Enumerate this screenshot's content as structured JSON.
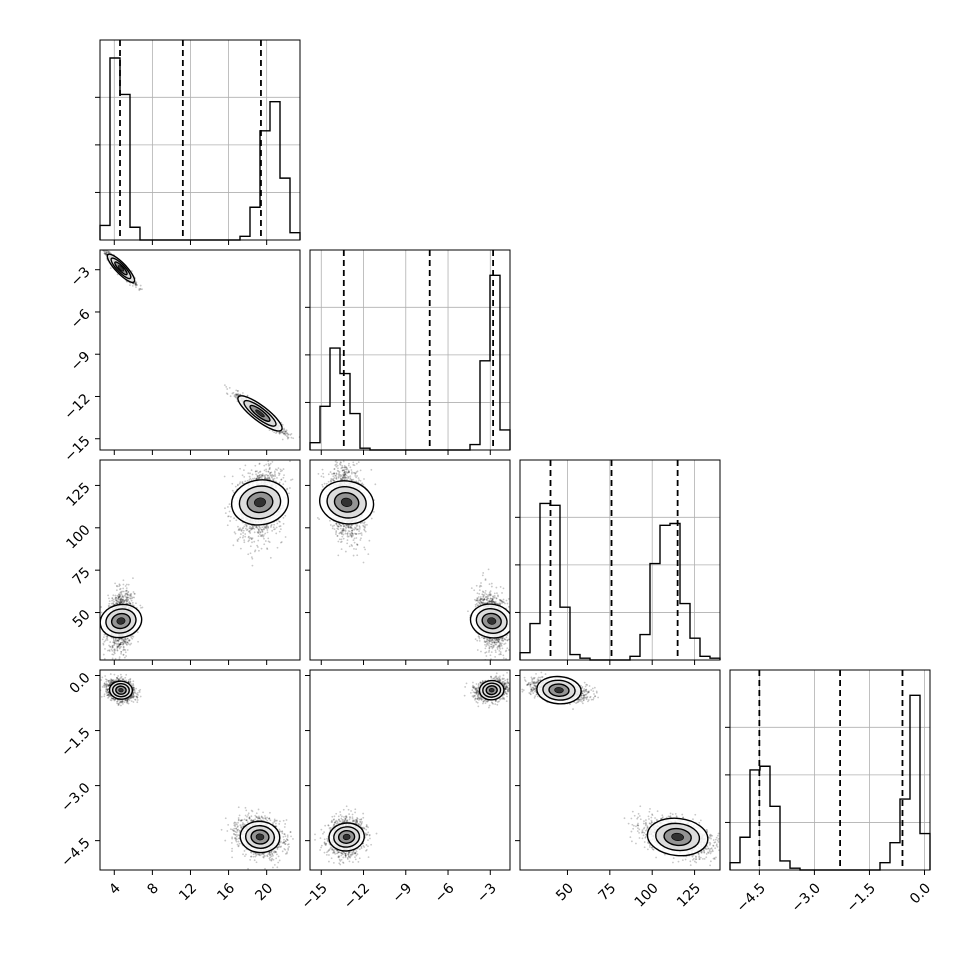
{
  "chart_data": {
    "type": "corner",
    "description_of_params": "4 parameters, no axis titles printed",
    "params": [
      {
        "range": [
          2.5,
          23.5
        ],
        "ticks": [
          4,
          8,
          12,
          16,
          20
        ],
        "tick_labels": [
          "4",
          "8",
          "12",
          "16",
          "20"
        ],
        "quantiles": [
          4.6,
          11.2,
          19.4
        ]
      },
      {
        "range": [
          -15.8,
          -1.6
        ],
        "ticks": [
          -15,
          -12,
          -9,
          -6,
          -3
        ],
        "tick_labels": [
          "−15",
          "−12",
          "−9",
          "−6",
          "−3"
        ],
        "quantiles": [
          -13.4,
          -7.3,
          -2.8
        ]
      },
      {
        "range": [
          22,
          140
        ],
        "ticks": [
          50,
          75,
          100,
          125
        ],
        "tick_labels": [
          "50",
          "75",
          "100",
          "125"
        ],
        "quantiles": [
          40,
          76,
          115
        ]
      },
      {
        "range": [
          -5.3,
          0.15
        ],
        "ticks": [
          -4.5,
          -3.0,
          -1.5,
          0.0
        ],
        "tick_labels": [
          "−4.5",
          "−3.0",
          "−1.5",
          "0.0"
        ],
        "quantiles": [
          -4.5,
          -2.3,
          -0.6
        ]
      }
    ],
    "histograms": [
      {
        "edges_start": 2.5,
        "bin_width": 1.05,
        "counts": [
          0.08,
          1.0,
          0.8,
          0.07,
          0,
          0,
          0,
          0,
          0,
          0,
          0,
          0,
          0,
          0,
          0.02,
          0.18,
          0.6,
          0.76,
          0.34,
          0.04
        ]
      },
      {
        "edges_start": -15.8,
        "bin_width": 0.71,
        "counts": [
          0.04,
          0.24,
          0.56,
          0.42,
          0.2,
          0.01,
          0,
          0,
          0,
          0,
          0,
          0,
          0,
          0,
          0,
          0,
          0.03,
          0.49,
          0.96,
          0.11
        ]
      },
      {
        "edges_start": 22,
        "bin_width": 5.9,
        "counts": [
          0.04,
          0.2,
          0.86,
          0.85,
          0.29,
          0.03,
          0.01,
          0,
          0,
          0,
          0,
          0.02,
          0.14,
          0.53,
          0.74,
          0.75,
          0.31,
          0.12,
          0.02,
          0.01
        ]
      },
      {
        "edges_start": -5.3,
        "bin_width": 0.2725,
        "counts": [
          0.04,
          0.18,
          0.55,
          0.57,
          0.35,
          0.05,
          0.01,
          0,
          0,
          0,
          0,
          0,
          0,
          0,
          0,
          0.04,
          0.15,
          0.39,
          0.96,
          0.2
        ]
      }
    ],
    "modes": [
      {
        "x": 4.7,
        "y": -2.9,
        "z": 45,
        "w": -0.4,
        "scale": [
          0.6,
          0.45,
          7,
          0.12
        ]
      },
      {
        "x": 19.3,
        "y": -13.2,
        "z": 115,
        "w": -4.4,
        "scale": [
          1.0,
          0.55,
          9,
          0.22
        ]
      }
    ],
    "correlations": {
      "xy": -0.94,
      "xz": 0.2,
      "xw": -0.2,
      "yz": -0.2,
      "yw": 0.2,
      "zw": -0.4
    }
  }
}
